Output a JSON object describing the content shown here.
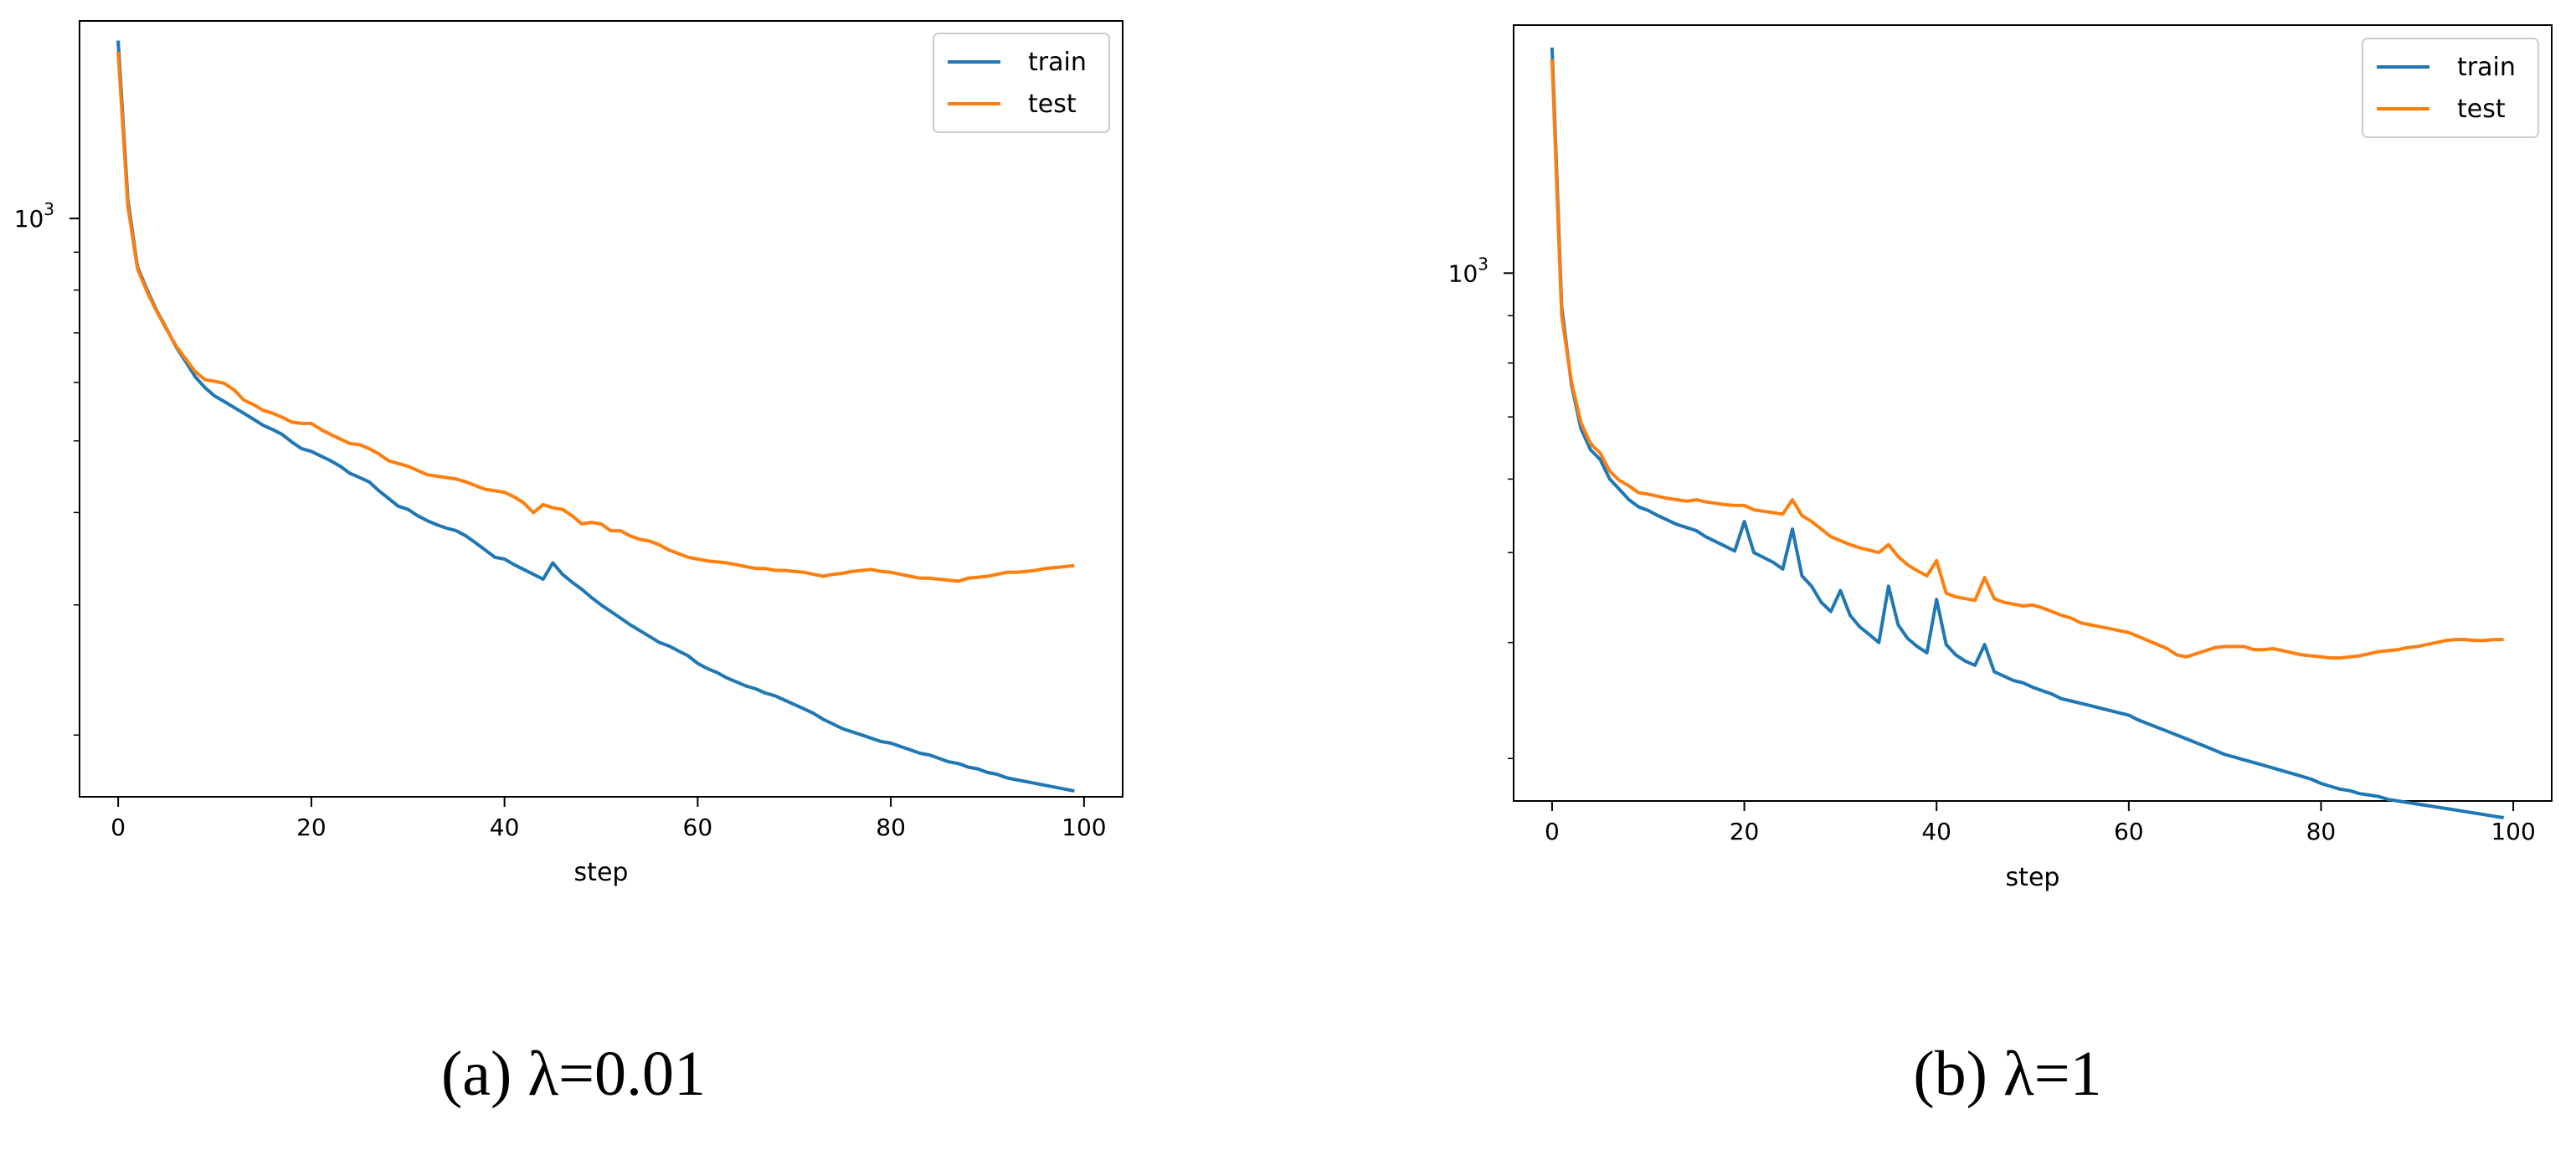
{
  "colors": {
    "train": "#1f77b4",
    "test": "#ff7f0e",
    "axis": "#000000"
  },
  "chart_data": [
    {
      "type": "line",
      "caption": "(a) λ=0.01",
      "xlabel": "step",
      "yscale": "log",
      "xlim": [
        -4,
        104
      ],
      "ylim": [
        165,
        1850
      ],
      "xticks": [
        0,
        20,
        40,
        60,
        80,
        100
      ],
      "yticks": [
        {
          "value": 1000,
          "base": "10",
          "exp": "3"
        }
      ],
      "legend": {
        "placement": "top-right",
        "entries": [
          "train",
          "test"
        ]
      },
      "x": [
        0,
        1,
        2,
        3,
        4,
        5,
        6,
        7,
        8,
        9,
        10,
        11,
        12,
        13,
        14,
        15,
        16,
        17,
        18,
        19,
        20,
        21,
        22,
        23,
        24,
        25,
        26,
        27,
        28,
        29,
        30,
        31,
        32,
        33,
        34,
        35,
        36,
        37,
        38,
        39,
        40,
        41,
        42,
        43,
        44,
        45,
        46,
        47,
        48,
        49,
        50,
        51,
        52,
        53,
        54,
        55,
        56,
        57,
        58,
        59,
        60,
        61,
        62,
        63,
        64,
        65,
        66,
        67,
        68,
        69,
        70,
        71,
        72,
        73,
        74,
        75,
        76,
        77,
        78,
        79,
        80,
        81,
        82,
        83,
        84,
        85,
        86,
        87,
        88,
        89,
        90,
        91,
        92,
        93,
        94,
        95,
        96,
        97,
        98,
        99
      ],
      "series": [
        {
          "name": "train",
          "values": [
            1740,
            1060,
            860,
            800,
            750,
            710,
            670,
            640,
            610,
            590,
            575,
            565,
            555,
            545,
            535,
            525,
            518,
            510,
            498,
            488,
            484,
            477,
            470,
            462,
            452,
            446,
            440,
            428,
            418,
            408,
            404,
            396,
            390,
            385,
            381,
            378,
            372,
            364,
            356,
            348,
            346,
            340,
            335,
            330,
            325,
            342,
            330,
            322,
            315,
            307,
            300,
            294,
            288,
            282,
            277,
            272,
            267,
            264,
            260,
            256,
            250,
            246,
            243,
            239,
            236,
            233,
            231,
            228,
            226,
            223,
            220,
            217,
            214,
            210,
            207,
            204,
            202,
            200,
            198,
            196,
            195,
            193,
            191,
            189,
            188,
            186,
            184,
            183,
            181,
            180,
            178,
            177,
            175,
            174,
            173,
            172,
            171,
            170,
            169,
            168
          ]
        },
        {
          "name": "test",
          "values": [
            1680,
            1040,
            855,
            795,
            748,
            708,
            672,
            645,
            620,
            605,
            602,
            598,
            586,
            568,
            560,
            550,
            545,
            538,
            530,
            528,
            528,
            518,
            510,
            503,
            496,
            494,
            488,
            480,
            470,
            466,
            462,
            456,
            450,
            448,
            446,
            444,
            440,
            435,
            430,
            428,
            426,
            420,
            412,
            400,
            410,
            406,
            404,
            396,
            386,
            388,
            386,
            378,
            378,
            372,
            368,
            366,
            362,
            356,
            352,
            348,
            346,
            344,
            343,
            342,
            340,
            338,
            336,
            336,
            334,
            334,
            333,
            332,
            330,
            328,
            330,
            331,
            333,
            334,
            335,
            333,
            332,
            330,
            328,
            326,
            326,
            325,
            324,
            323,
            326,
            327,
            328,
            330,
            332,
            332,
            333,
            334,
            336,
            337,
            338,
            339
          ]
        }
      ]
    },
    {
      "type": "line",
      "caption": "(b) λ=1",
      "xlabel": "step",
      "yscale": "log",
      "xlim": [
        -4,
        104
      ],
      "ylim": [
        270,
        1850
      ],
      "xticks": [
        0,
        20,
        40,
        60,
        80,
        100
      ],
      "yticks": [
        {
          "value": 1000,
          "base": "10",
          "exp": "3"
        }
      ],
      "legend": {
        "placement": "top-right",
        "entries": [
          "train",
          "test"
        ]
      },
      "x": [
        0,
        1,
        2,
        3,
        4,
        5,
        6,
        7,
        8,
        9,
        10,
        11,
        12,
        13,
        14,
        15,
        16,
        17,
        18,
        19,
        20,
        21,
        22,
        23,
        24,
        25,
        26,
        27,
        28,
        29,
        30,
        31,
        32,
        33,
        34,
        35,
        36,
        37,
        38,
        39,
        40,
        41,
        42,
        43,
        44,
        45,
        46,
        47,
        48,
        49,
        50,
        51,
        52,
        53,
        54,
        55,
        56,
        57,
        58,
        59,
        60,
        61,
        62,
        63,
        64,
        65,
        66,
        67,
        68,
        69,
        70,
        71,
        72,
        73,
        74,
        75,
        76,
        77,
        78,
        79,
        80,
        81,
        82,
        83,
        84,
        85,
        86,
        87,
        88,
        89,
        90,
        91,
        92,
        93,
        94,
        95,
        96,
        97,
        98,
        99
      ],
      "series": [
        {
          "name": "train",
          "values": [
            1750,
            920,
            760,
            680,
            645,
            630,
            600,
            585,
            570,
            560,
            555,
            548,
            542,
            536,
            532,
            528,
            520,
            514,
            508,
            502,
            540,
            500,
            494,
            488,
            480,
            530,
            472,
            460,
            442,
            432,
            455,
            428,
            416,
            408,
            400,
            460,
            418,
            404,
            396,
            390,
            445,
            398,
            388,
            382,
            378,
            398,
            372,
            368,
            364,
            362,
            358,
            355,
            352,
            348,
            346,
            344,
            342,
            340,
            338,
            336,
            334,
            330,
            327,
            324,
            321,
            318,
            315,
            312,
            309,
            306,
            303,
            301,
            299,
            297,
            295,
            293,
            291,
            289,
            287,
            285,
            282,
            280,
            278,
            277,
            275,
            274,
            273,
            271,
            270,
            269,
            268,
            267,
            266,
            265,
            264,
            263,
            262,
            261,
            260,
            259
          ]
        },
        {
          "name": "test",
          "values": [
            1700,
            900,
            765,
            690,
            655,
            640,
            612,
            598,
            590,
            580,
            578,
            575,
            572,
            570,
            568,
            570,
            567,
            565,
            563,
            562,
            562,
            556,
            554,
            552,
            550,
            570,
            548,
            540,
            530,
            520,
            515,
            510,
            506,
            503,
            500,
            510,
            495,
            485,
            478,
            472,
            490,
            452,
            448,
            446,
            444,
            470,
            446,
            442,
            440,
            438,
            439,
            436,
            432,
            428,
            425,
            420,
            418,
            416,
            414,
            412,
            410,
            406,
            402,
            398,
            394,
            388,
            386,
            389,
            392,
            395,
            396,
            396,
            396,
            393,
            393,
            394,
            392,
            390,
            388,
            387,
            386,
            385,
            385,
            386,
            387,
            389,
            391,
            392,
            393,
            395,
            396,
            398,
            400,
            402,
            403,
            403,
            402,
            402,
            403,
            403
          ]
        }
      ]
    }
  ]
}
